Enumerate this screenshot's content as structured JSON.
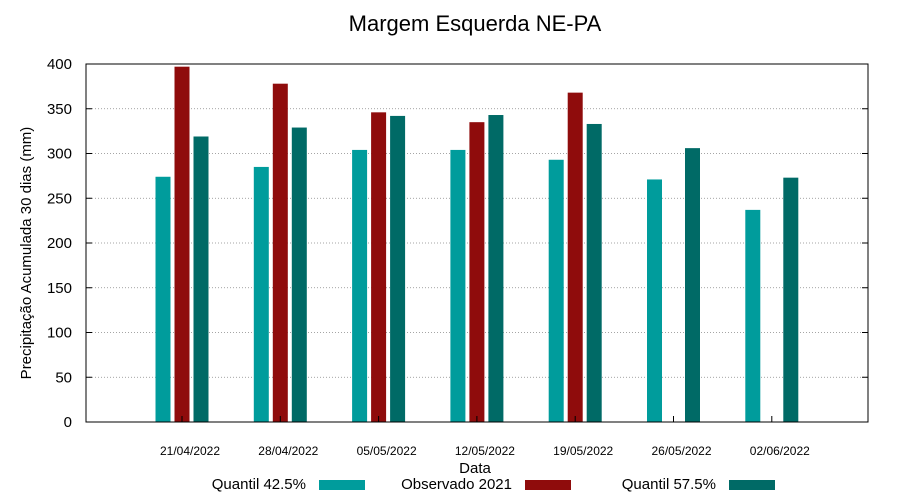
{
  "chart_data": {
    "type": "bar",
    "title": "Margem Esquerda NE-PA",
    "xlabel": "Data",
    "ylabel": "Precipitação Acumulada 30 dias (mm)",
    "ylim": [
      0,
      400
    ],
    "yticks": [
      0,
      50,
      100,
      150,
      200,
      250,
      300,
      350,
      400
    ],
    "grid": true,
    "legend_position": "bottom",
    "categories": [
      "21/04/2022",
      "28/04/2022",
      "05/05/2022",
      "12/05/2022",
      "19/05/2022",
      "26/05/2022",
      "02/06/2022"
    ],
    "series": [
      {
        "name": "Quantil 42.5%",
        "color": "#009c9c",
        "values": [
          274,
          285,
          304,
          304,
          293,
          271,
          237
        ]
      },
      {
        "name": "Observado 2021",
        "color": "#8f0c0c",
        "values": [
          397,
          378,
          346,
          335,
          368,
          null,
          null
        ]
      },
      {
        "name": "Quantil 57.5%",
        "color": "#006a66",
        "values": [
          319,
          329,
          342,
          343,
          333,
          306,
          273
        ]
      }
    ]
  }
}
